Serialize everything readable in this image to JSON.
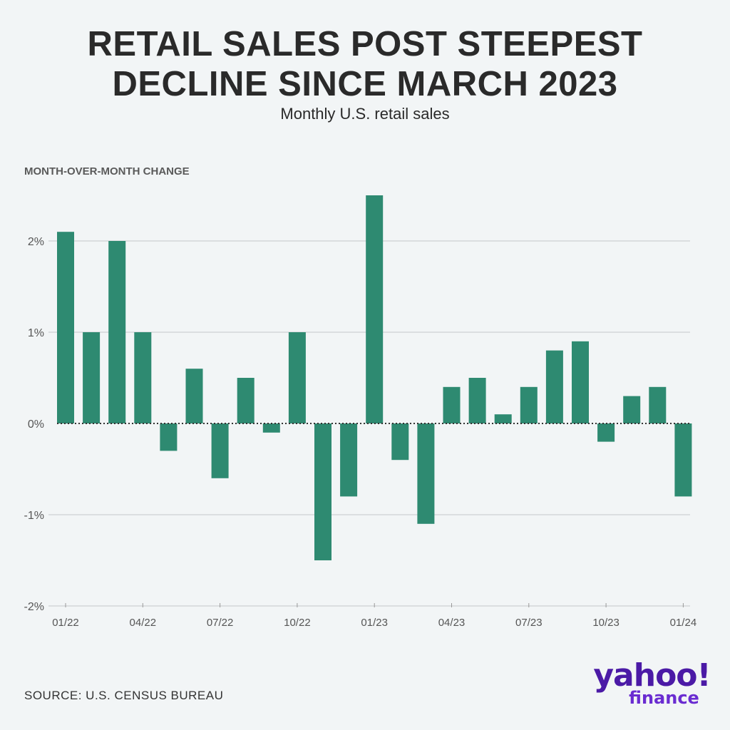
{
  "chart_data": {
    "type": "bar",
    "title_lines": [
      "RETAIL SALES POST STEEPEST",
      "DECLINE SINCE MARCH 2023"
    ],
    "subtitle": "Monthly U.S. retail sales",
    "ylabel": "MONTH-OVER-MONTH CHANGE",
    "ylim": [
      -2,
      2.5
    ],
    "yticks": [
      2,
      1,
      0,
      -1,
      -2
    ],
    "ytick_labels": [
      "2%",
      "1%",
      "0%",
      "-1%",
      "-2%"
    ],
    "categories": [
      "01/22",
      "02/22",
      "03/22",
      "04/22",
      "05/22",
      "06/22",
      "07/22",
      "08/22",
      "09/22",
      "10/22",
      "11/22",
      "12/22",
      "01/23",
      "02/23",
      "03/23",
      "04/23",
      "05/23",
      "06/23",
      "07/23",
      "08/23",
      "09/23",
      "10/23",
      "11/23",
      "12/23",
      "01/24"
    ],
    "xtick_labels": [
      "01/22",
      "04/22",
      "07/22",
      "10/22",
      "01/23",
      "04/23",
      "07/23",
      "10/23",
      "01/24"
    ],
    "values": [
      2.1,
      1.0,
      2.0,
      1.0,
      -0.3,
      0.6,
      -0.6,
      0.5,
      -0.1,
      1.0,
      -1.5,
      -0.8,
      2.5,
      -0.4,
      -1.1,
      0.4,
      0.5,
      0.1,
      0.4,
      0.8,
      0.9,
      -0.2,
      0.3,
      0.4,
      -0.8
    ],
    "bar_color": "#2e8a71",
    "grid": true
  },
  "source": "SOURCE: U.S. CENSUS BUREAU",
  "logo": {
    "brand": "yahoo!",
    "product": "finance",
    "color": "#4b1aa6"
  }
}
